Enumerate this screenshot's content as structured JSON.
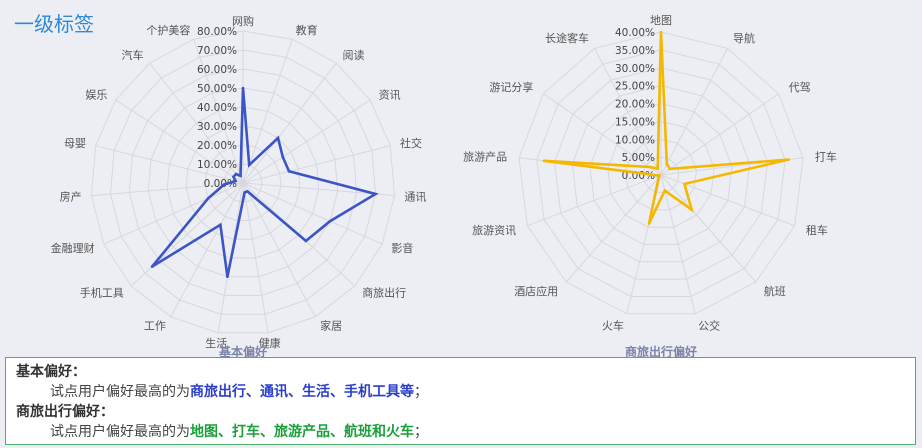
{
  "page_title": "一级标签",
  "chart_data": [
    {
      "type": "radar",
      "title": "基本偏好",
      "categories": [
        "网购",
        "教育",
        "阅读",
        "资讯",
        "社交",
        "通讯",
        "影音",
        "商旅出行",
        "家居",
        "健康",
        "生活",
        "工作",
        "手机工具",
        "金融理财",
        "房产",
        "母婴",
        "娱乐",
        "汽车",
        "个护美容"
      ],
      "values": [
        0.5,
        0.1,
        0.3,
        0.25,
        0.25,
        0.7,
        0.5,
        0.45,
        0.05,
        0.05,
        0.5,
        0.25,
        0.65,
        0.2,
        0.1,
        0.04,
        0.06,
        0.06,
        0.04
      ],
      "tick_labels": [
        "0.00%",
        "10.00%",
        "20.00%",
        "30.00%",
        "40.00%",
        "50.00%",
        "60.00%",
        "70.00%",
        "80.00%"
      ],
      "rmax": 0.8,
      "color": "#3b55c9",
      "grid": true
    },
    {
      "type": "radar",
      "title": "商旅出行偏好",
      "categories": [
        "地图",
        "导航",
        "代驾",
        "打车",
        "租车",
        "航班",
        "公交",
        "火车",
        "酒店应用",
        "旅游资讯",
        "旅游产品",
        "游记分享",
        "长途客车"
      ],
      "values": [
        0.4,
        0.035,
        0.03,
        0.36,
        0.07,
        0.13,
        0.045,
        0.14,
        0.01,
        0.005,
        0.33,
        0.04,
        0.02
      ],
      "tick_labels": [
        "0.00%",
        "5.00%",
        "10.00%",
        "15.00%",
        "20.00%",
        "25.00%",
        "30.00%",
        "35.00%",
        "40.00%"
      ],
      "rmax": 0.4,
      "color": "#f5b800",
      "grid": true
    }
  ],
  "summary": {
    "basic_heading": "基本偏好：",
    "basic_prefix": "试点用户偏好最高的为",
    "basic_highlight": "商旅出行、通讯、生活、手机工具等",
    "basic_suffix": "；",
    "travel_heading": "商旅出行偏好：",
    "travel_prefix": "试点用户偏好最高的为",
    "travel_highlight": "地图、打车、旅游产品、航班和火车",
    "travel_suffix": "；"
  }
}
